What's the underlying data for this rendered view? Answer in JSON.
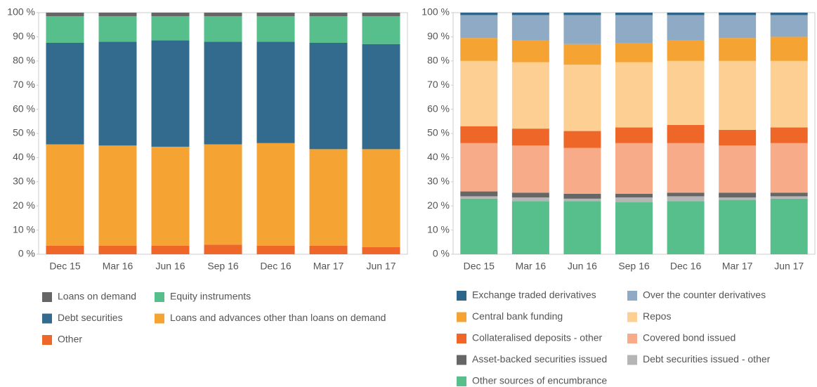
{
  "chart_data": [
    {
      "type": "stacked_bar",
      "categories": [
        "Dec 15",
        "Mar 16",
        "Jun 16",
        "Sep 16",
        "Dec 16",
        "Mar 17",
        "Jun 17"
      ],
      "ylim": [
        0,
        100
      ],
      "yticks": [
        {
          "value": 0,
          "label": "0 %"
        },
        {
          "value": 10,
          "label": "10 %"
        },
        {
          "value": 20,
          "label": "20 %"
        },
        {
          "value": 30,
          "label": "30 %"
        },
        {
          "value": 40,
          "label": "40 %"
        },
        {
          "value": 50,
          "label": "50 %"
        },
        {
          "value": 60,
          "label": "60 %"
        },
        {
          "value": 70,
          "label": "70 %"
        },
        {
          "value": 80,
          "label": "80 %"
        },
        {
          "value": 90,
          "label": "90 %"
        },
        {
          "value": 100,
          "label": "100 %"
        }
      ],
      "series": [
        {
          "name": "Loans on demand",
          "color": "#666666",
          "values": [
            1.5,
            1.5,
            1.5,
            1.5,
            1.5,
            1.5,
            1.5
          ]
        },
        {
          "name": "Equity instruments",
          "color": "#56bf8c",
          "values": [
            11,
            10.5,
            10,
            10.5,
            10.5,
            11,
            11.5
          ]
        },
        {
          "name": "Debt securities",
          "color": "#336b8e",
          "values": [
            42,
            43,
            44,
            42.5,
            42,
            44,
            43.5
          ]
        },
        {
          "name": "Loans and advances other than loans on demand",
          "color": "#f5a332",
          "values": [
            42,
            41.5,
            41,
            41.5,
            42.5,
            40,
            40.5
          ]
        },
        {
          "name": "Other",
          "color": "#ef6629",
          "values": [
            3.5,
            3.5,
            3.5,
            4,
            3.5,
            3.5,
            3
          ]
        }
      ]
    },
    {
      "type": "stacked_bar",
      "categories": [
        "Dec 15",
        "Mar 16",
        "Jun 16",
        "Sep 16",
        "Dec 16",
        "Mar 17",
        "Jun 17"
      ],
      "ylim": [
        0,
        100
      ],
      "yticks": [
        {
          "value": 0,
          "label": "0 %"
        },
        {
          "value": 10,
          "label": "10 %"
        },
        {
          "value": 20,
          "label": "20 %"
        },
        {
          "value": 30,
          "label": "30 %"
        },
        {
          "value": 40,
          "label": "40 %"
        },
        {
          "value": 50,
          "label": "50 %"
        },
        {
          "value": 60,
          "label": "60 %"
        },
        {
          "value": 70,
          "label": "70 %"
        },
        {
          "value": 80,
          "label": "80 %"
        },
        {
          "value": 90,
          "label": "90 %"
        },
        {
          "value": 100,
          "label": "100 %"
        }
      ],
      "series": [
        {
          "name": "Exchange traded derivatives",
          "color": "#2d6688",
          "values": [
            1,
            1,
            1,
            1,
            1,
            1,
            1
          ]
        },
        {
          "name": "Over the counter derivatives",
          "color": "#8eaac5",
          "values": [
            9.5,
            10.5,
            12,
            11.5,
            10.5,
            9.5,
            9
          ]
        },
        {
          "name": "Central bank funding",
          "color": "#f5a332",
          "values": [
            9.5,
            9,
            8.5,
            8,
            8.5,
            9.5,
            10
          ]
        },
        {
          "name": "Repos",
          "color": "#fecf93",
          "values": [
            27,
            27.5,
            27.5,
            27,
            26.5,
            28.5,
            27.5
          ]
        },
        {
          "name": "Collateralised deposits - other",
          "color": "#ef6629",
          "values": [
            7,
            7,
            7,
            6.5,
            7.5,
            6.5,
            6.5
          ]
        },
        {
          "name": "Covered bond issued",
          "color": "#f8ab88",
          "values": [
            20,
            19.5,
            19,
            21,
            20.5,
            19.5,
            20.5
          ]
        },
        {
          "name": "Asset-backed securities issued",
          "color": "#666666",
          "values": [
            2,
            2,
            2,
            1.5,
            1.5,
            2,
            1.5
          ]
        },
        {
          "name": "Debt securities issued - other",
          "color": "#b5b5b5",
          "values": [
            1,
            1.5,
            1,
            2,
            2,
            1,
            1
          ]
        },
        {
          "name": "Other sources of encumbrance",
          "color": "#56bf8c",
          "values": [
            23,
            22,
            22,
            21.5,
            22,
            22.5,
            23
          ]
        }
      ]
    }
  ]
}
